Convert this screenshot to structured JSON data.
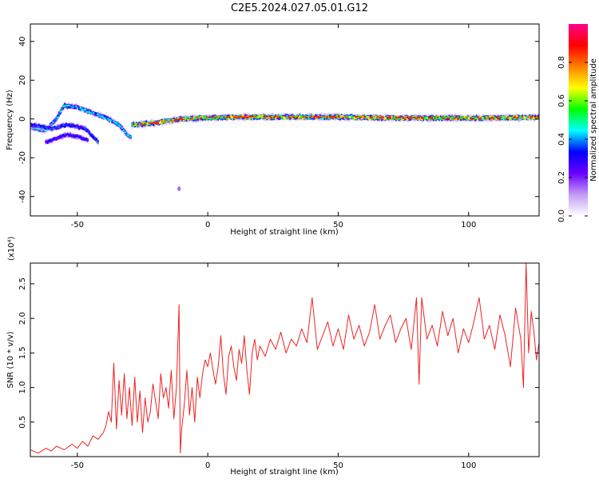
{
  "figure": {
    "title": "C2E5.2024.027.05.01.G12"
  },
  "chart_data": [
    {
      "type": "heatmap",
      "title": "C2E5.2024.027.05.01.G12",
      "xlabel": "Height of straight line (km)",
      "ylabel": "Frequency (Hz)",
      "xlim": [
        -68,
        127
      ],
      "ylim": [
        -50,
        49
      ],
      "xticks": [
        -50,
        0,
        50,
        100
      ],
      "xtick_labels": [
        "-50",
        "0",
        "50",
        "100"
      ],
      "yticks": [
        -40,
        -20,
        0,
        20,
        40
      ],
      "ytick_labels": [
        "-40",
        "-20",
        "0",
        "20",
        "40"
      ],
      "grid": false,
      "colorbar": {
        "label": "Normalized spectral amplitude",
        "range": [
          0,
          1
        ],
        "ticks": [
          0.0,
          0.2,
          0.4,
          0.6,
          0.8
        ],
        "tick_labels": [
          "0.0",
          "0.2",
          "0.4",
          "0.6",
          "0.8"
        ],
        "colors": [
          "#ffffff",
          "#c39bf5",
          "#6a00ff",
          "#0000ff",
          "#00ffff",
          "#00ff00",
          "#ffff00",
          "#ff8000",
          "#ff0000",
          "#ff0090"
        ]
      },
      "ridges": [
        {
          "x": [
            -68,
            -62,
            -58,
            -55,
            -50,
            -46,
            -42,
            -38,
            -34,
            -31,
            -29
          ],
          "y": [
            -4,
            -6,
            0,
            7,
            6,
            4,
            2,
            0,
            -3,
            -8,
            -10
          ],
          "max_amplitude": 0.5
        },
        {
          "x": [
            -68,
            -64,
            -60,
            -57,
            -54,
            -50,
            -47,
            -44,
            -42
          ],
          "y": [
            -3,
            -4,
            -5,
            -4,
            -3,
            -4,
            -5,
            -9,
            -12
          ],
          "max_amplitude": 0.4
        },
        {
          "x": [
            -62,
            -58,
            -54,
            -50,
            -46
          ],
          "y": [
            -12,
            -10,
            -8,
            -9,
            -11
          ],
          "max_amplitude": 0.3
        },
        {
          "x": [
            -29,
            -20,
            -10,
            -2,
            10,
            30,
            50,
            70,
            90,
            110,
            127
          ],
          "y": [
            -3,
            -2,
            0,
            0.5,
            1,
            1,
            1,
            0.5,
            0.5,
            0.5,
            1
          ],
          "max_amplitude": 0.95
        }
      ],
      "isolated_points": [
        {
          "x": -11,
          "y": -36,
          "amplitude": 0.15
        }
      ]
    },
    {
      "type": "line",
      "title": "",
      "xlabel": "Height of straight line (km)",
      "ylabel": "SNR (10 * v/v)",
      "y_multiplier": "(x10⁴)",
      "xlim": [
        -68,
        127
      ],
      "ylim": [
        0,
        2.8
      ],
      "xticks": [
        -50,
        0,
        50,
        100
      ],
      "xtick_labels": [
        "-50",
        "0",
        "50",
        "100"
      ],
      "yticks": [
        0.5,
        1.0,
        1.5,
        2.0,
        2.5
      ],
      "ytick_labels": [
        "0.5",
        "1.0",
        "1.5",
        "2.0",
        "2.5"
      ],
      "grid": false,
      "series": [
        {
          "color": "#ee2222",
          "x": [
            -68,
            -65,
            -62,
            -60,
            -58,
            -55,
            -52,
            -50,
            -48,
            -46,
            -44,
            -42,
            -40,
            -39,
            -38,
            -37,
            -36,
            -35,
            -34,
            -33,
            -32,
            -31,
            -30,
            -29,
            -28,
            -27,
            -26,
            -25,
            -24,
            -23,
            -22,
            -21,
            -20,
            -19,
            -18,
            -17,
            -16,
            -15,
            -14,
            -13,
            -12,
            -11,
            -10.5,
            -10,
            -9,
            -8,
            -7,
            -6,
            -5,
            -4,
            -3,
            -2,
            -1,
            0,
            1,
            2,
            3,
            4,
            5,
            6,
            7,
            8,
            9,
            10,
            11,
            12,
            13,
            14,
            15,
            16,
            17,
            18,
            19,
            20,
            22,
            24,
            26,
            28,
            30,
            32,
            34,
            36,
            38,
            40,
            42,
            44,
            46,
            48,
            50,
            52,
            54,
            56,
            58,
            60,
            62,
            64,
            66,
            68,
            70,
            72,
            74,
            76,
            78,
            80,
            81,
            82,
            84,
            86,
            88,
            90,
            92,
            94,
            96,
            98,
            100,
            102,
            104,
            106,
            108,
            110,
            112,
            114,
            116,
            118,
            120,
            121,
            122,
            123,
            124,
            125,
            126,
            127
          ],
          "y": [
            0.1,
            0.05,
            0.12,
            0.08,
            0.15,
            0.1,
            0.18,
            0.12,
            0.22,
            0.15,
            0.3,
            0.25,
            0.35,
            0.45,
            0.65,
            0.5,
            1.35,
            0.4,
            1.1,
            0.6,
            1.2,
            0.55,
            1.0,
            0.45,
            1.15,
            0.5,
            0.95,
            0.35,
            0.85,
            0.5,
            0.65,
            1.05,
            0.8,
            0.55,
            1.2,
            0.85,
            1.0,
            0.7,
            1.25,
            0.55,
            1.0,
            2.2,
            0.05,
            0.4,
            0.75,
            1.25,
            0.6,
            1.0,
            0.5,
            1.15,
            0.85,
            1.2,
            1.4,
            1.3,
            1.5,
            1.25,
            1.05,
            1.3,
            1.75,
            1.2,
            0.9,
            1.45,
            1.6,
            1.3,
            1.1,
            1.55,
            1.35,
            1.75,
            1.25,
            0.9,
            1.5,
            1.7,
            1.4,
            1.6,
            1.45,
            1.7,
            1.55,
            1.8,
            1.5,
            1.7,
            1.6,
            1.85,
            1.65,
            2.3,
            1.55,
            1.75,
            1.95,
            1.6,
            1.85,
            1.55,
            2.05,
            1.7,
            1.9,
            1.6,
            1.8,
            2.2,
            1.7,
            1.9,
            2.05,
            1.65,
            1.85,
            2.0,
            1.55,
            2.3,
            1.05,
            2.3,
            1.7,
            1.9,
            1.6,
            2.1,
            1.75,
            2.0,
            1.5,
            1.85,
            1.65,
            1.95,
            2.3,
            1.7,
            1.9,
            1.55,
            2.05,
            1.75,
            1.3,
            2.15,
            1.7,
            1.0,
            2.8,
            1.5,
            2.1,
            1.8,
            1.4,
            1.65
          ]
        }
      ]
    }
  ]
}
